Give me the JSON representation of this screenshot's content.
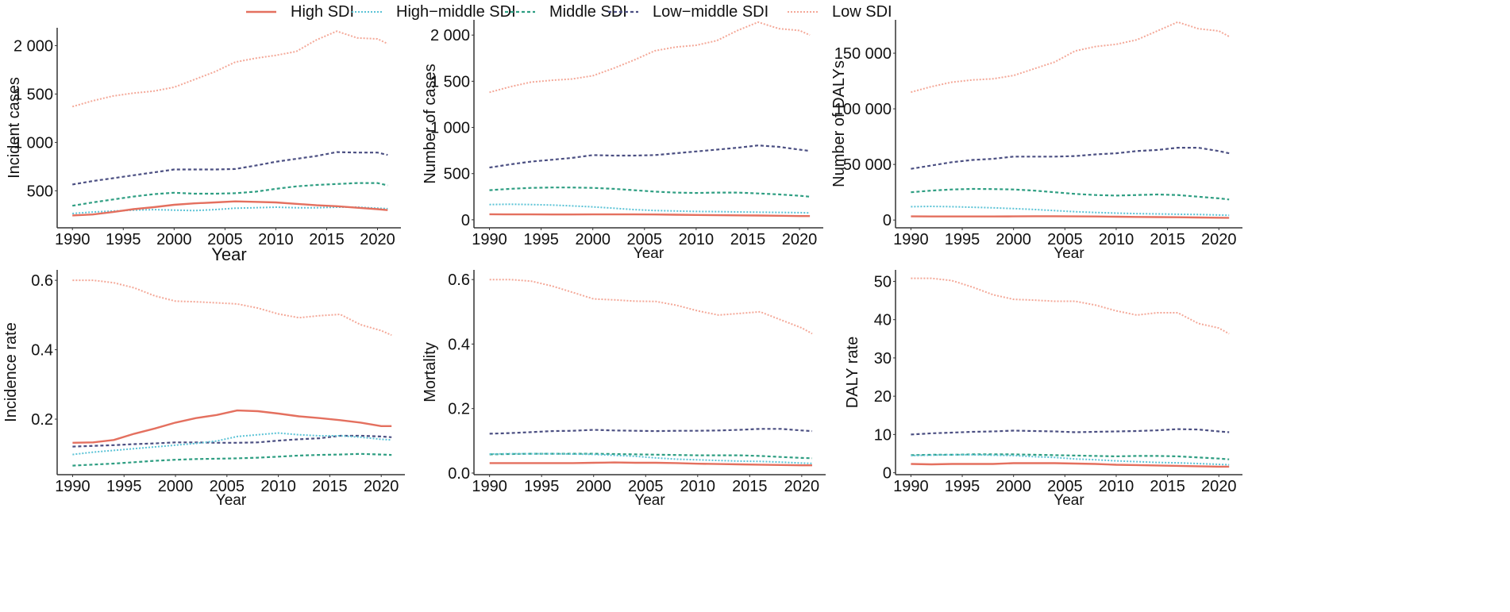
{
  "legend": [
    {
      "label": "High SDI",
      "color": "#E4705F",
      "style": "solid"
    },
    {
      "label": "High−middle SDI",
      "color": "#5BC3D6",
      "style": "dotted"
    },
    {
      "label": "Middle SDI",
      "color": "#2E9E82",
      "style": "dashed"
    },
    {
      "label": "Low−middle SDI",
      "color": "#4B4F82",
      "style": "dashed"
    },
    {
      "label": "Low SDI",
      "color": "#F4A898",
      "style": "dotted"
    }
  ],
  "chart_data": [
    {
      "type": "line",
      "xlabel": "Year",
      "ylabel": "Incident cases",
      "xlim": [
        1988.5,
        2022.3
      ],
      "ylim": [
        117,
        2185
      ],
      "xticks": [
        1990,
        1995,
        2000,
        2005,
        2010,
        2015,
        2020
      ],
      "xtick_labels": [
        "1990",
        "1995",
        "2000",
        "2005",
        "2010",
        "2015",
        "2020"
      ],
      "yticks": [
        500,
        1000,
        1500,
        2000
      ],
      "ytick_labels": [
        "500",
        "1 000",
        "1 500",
        "2 000"
      ],
      "x": [
        1990,
        1992,
        1994,
        1996,
        1998,
        2000,
        2002,
        2004,
        2006,
        2008,
        2010,
        2012,
        2014,
        2016,
        2018,
        2020,
        2021
      ],
      "series": [
        {
          "name": "High SDI",
          "values": [
            245,
            255,
            280,
            310,
            330,
            355,
            370,
            380,
            390,
            385,
            380,
            365,
            350,
            340,
            325,
            310,
            300
          ]
        },
        {
          "name": "High-middle SDI",
          "values": [
            265,
            280,
            290,
            300,
            305,
            300,
            295,
            305,
            320,
            325,
            330,
            325,
            325,
            330,
            330,
            320,
            315
          ]
        },
        {
          "name": "Middle SDI",
          "values": [
            345,
            380,
            410,
            440,
            465,
            480,
            470,
            470,
            475,
            490,
            520,
            545,
            560,
            570,
            580,
            580,
            555
          ]
        },
        {
          "name": "Low-middle SDI",
          "values": [
            565,
            600,
            630,
            660,
            690,
            720,
            720,
            720,
            725,
            760,
            800,
            830,
            860,
            900,
            895,
            895,
            870
          ]
        },
        {
          "name": "Low SDI",
          "values": [
            1370,
            1430,
            1480,
            1510,
            1530,
            1570,
            1650,
            1730,
            1830,
            1870,
            1900,
            1940,
            2060,
            2150,
            2080,
            2070,
            2020
          ]
        }
      ]
    },
    {
      "type": "line",
      "xlabel": "Year",
      "ylabel": "Number of cases",
      "xlim": [
        1988.5,
        2022.3
      ],
      "ylim": [
        -87,
        2165
      ],
      "xticks": [
        1990,
        1995,
        2000,
        2005,
        2010,
        2015,
        2020
      ],
      "xtick_labels": [
        "1990",
        "1995",
        "2000",
        "2005",
        "2010",
        "2015",
        "2020"
      ],
      "yticks": [
        0,
        500,
        1000,
        1500,
        2000
      ],
      "ytick_labels": [
        "0",
        "500",
        "1 000",
        "1 500",
        "2 000"
      ],
      "x": [
        1990,
        1992,
        1994,
        1996,
        1998,
        2000,
        2002,
        2004,
        2006,
        2008,
        2010,
        2012,
        2014,
        2016,
        2018,
        2020,
        2021
      ],
      "series": [
        {
          "name": "High SDI",
          "values": [
            60,
            58,
            58,
            57,
            57,
            58,
            58,
            58,
            57,
            55,
            52,
            50,
            48,
            46,
            44,
            40,
            40
          ]
        },
        {
          "name": "High-middle SDI",
          "values": [
            165,
            168,
            165,
            160,
            150,
            140,
            125,
            110,
            100,
            95,
            90,
            88,
            85,
            82,
            80,
            77,
            75
          ]
        },
        {
          "name": "Middle SDI",
          "values": [
            320,
            335,
            345,
            350,
            350,
            345,
            335,
            320,
            305,
            295,
            290,
            295,
            295,
            285,
            275,
            260,
            250
          ]
        },
        {
          "name": "Low-middle SDI",
          "values": [
            565,
            600,
            630,
            650,
            670,
            700,
            695,
            695,
            700,
            720,
            740,
            760,
            780,
            805,
            790,
            760,
            745
          ]
        },
        {
          "name": "Low SDI",
          "values": [
            1380,
            1440,
            1490,
            1510,
            1525,
            1560,
            1640,
            1730,
            1830,
            1870,
            1890,
            1940,
            2050,
            2140,
            2070,
            2050,
            2000
          ]
        }
      ]
    },
    {
      "type": "line",
      "xlabel": "Year",
      "ylabel": "Number of DALYs",
      "xlim": [
        1988.5,
        2022.3
      ],
      "ylim": [
        -7000,
        180000
      ],
      "xticks": [
        1990,
        1995,
        2000,
        2005,
        2010,
        2015,
        2020
      ],
      "xtick_labels": [
        "1990",
        "1995",
        "2000",
        "2005",
        "2010",
        "2015",
        "2020"
      ],
      "yticks": [
        0,
        50000,
        100000,
        150000
      ],
      "ytick_labels": [
        "0",
        "50 000",
        "100 000",
        "150 000"
      ],
      "x": [
        1990,
        1992,
        1994,
        1996,
        1998,
        2000,
        2002,
        2004,
        2006,
        2008,
        2010,
        2012,
        2014,
        2016,
        2018,
        2020,
        2021
      ],
      "series": [
        {
          "name": "High SDI",
          "values": [
            3300,
            3200,
            3200,
            3200,
            3200,
            3300,
            3400,
            3400,
            3300,
            3200,
            3000,
            2800,
            2600,
            2500,
            2300,
            2100,
            2000
          ]
        },
        {
          "name": "High-middle SDI",
          "values": [
            12000,
            12300,
            12000,
            11500,
            11000,
            10300,
            9500,
            8500,
            7500,
            6800,
            6200,
            5800,
            5500,
            5200,
            5000,
            4500,
            4300
          ]
        },
        {
          "name": "Middle SDI",
          "values": [
            25000,
            26500,
            27500,
            28000,
            27800,
            27500,
            26500,
            25000,
            23500,
            22500,
            22000,
            22500,
            23000,
            22500,
            21000,
            19500,
            18500
          ]
        },
        {
          "name": "Low-middle SDI",
          "values": [
            46000,
            49000,
            52000,
            54000,
            55000,
            57000,
            57000,
            57000,
            57500,
            59000,
            60000,
            62000,
            63000,
            65000,
            65000,
            62000,
            60000
          ]
        },
        {
          "name": "Low SDI",
          "values": [
            115000,
            120000,
            124000,
            126000,
            127000,
            130000,
            136000,
            142000,
            152000,
            156000,
            158000,
            162000,
            170000,
            178000,
            172000,
            170000,
            165000
          ]
        }
      ]
    },
    {
      "type": "line",
      "xlabel": "Year",
      "ylabel": "Incidence rate",
      "xlim": [
        1988.5,
        2022.3
      ],
      "ylim": [
        0.04,
        0.63
      ],
      "xticks": [
        1990,
        1995,
        2000,
        2005,
        2010,
        2015,
        2020
      ],
      "xtick_labels": [
        "1990",
        "1995",
        "2000",
        "2005",
        "2010",
        "2015",
        "2020"
      ],
      "yticks": [
        0.2,
        0.4,
        0.6
      ],
      "ytick_labels": [
        "0.2",
        "0.4",
        "0.6"
      ],
      "x": [
        1990,
        1992,
        1994,
        1996,
        1998,
        2000,
        2002,
        2004,
        2006,
        2008,
        2010,
        2012,
        2014,
        2016,
        2018,
        2020,
        2021
      ],
      "series": [
        {
          "name": "High SDI",
          "values": [
            0.132,
            0.133,
            0.14,
            0.158,
            0.173,
            0.19,
            0.203,
            0.212,
            0.225,
            0.223,
            0.216,
            0.208,
            0.203,
            0.197,
            0.19,
            0.18,
            0.18
          ]
        },
        {
          "name": "High-middle SDI",
          "values": [
            0.098,
            0.105,
            0.11,
            0.115,
            0.12,
            0.125,
            0.13,
            0.137,
            0.15,
            0.155,
            0.16,
            0.155,
            0.152,
            0.152,
            0.148,
            0.142,
            0.14
          ]
        },
        {
          "name": "Middle SDI",
          "values": [
            0.066,
            0.069,
            0.072,
            0.076,
            0.08,
            0.083,
            0.085,
            0.086,
            0.087,
            0.089,
            0.092,
            0.095,
            0.097,
            0.098,
            0.1,
            0.098,
            0.097
          ]
        },
        {
          "name": "Low-middle SDI",
          "values": [
            0.121,
            0.123,
            0.125,
            0.128,
            0.13,
            0.133,
            0.133,
            0.132,
            0.132,
            0.133,
            0.138,
            0.142,
            0.145,
            0.152,
            0.152,
            0.15,
            0.148
          ]
        },
        {
          "name": "Low SDI",
          "values": [
            0.6,
            0.6,
            0.593,
            0.578,
            0.555,
            0.54,
            0.538,
            0.535,
            0.532,
            0.52,
            0.503,
            0.492,
            0.498,
            0.502,
            0.472,
            0.455,
            0.442
          ]
        }
      ]
    },
    {
      "type": "line",
      "xlabel": "Year",
      "ylabel": "Mortality",
      "xlim": [
        1988.5,
        2022.3
      ],
      "ylim": [
        -0.005,
        0.63
      ],
      "xticks": [
        1990,
        1995,
        2000,
        2005,
        2010,
        2015,
        2020
      ],
      "xtick_labels": [
        "1990",
        "1995",
        "2000",
        "2005",
        "2010",
        "2015",
        "2020"
      ],
      "yticks": [
        0,
        0.2,
        0.4,
        0.6
      ],
      "ytick_labels": [
        "0.0",
        "0.2",
        "0.4",
        "0.6"
      ],
      "x": [
        1990,
        1992,
        1994,
        1996,
        1998,
        2000,
        2002,
        2004,
        2006,
        2008,
        2010,
        2012,
        2014,
        2016,
        2018,
        2020,
        2021
      ],
      "series": [
        {
          "name": "High SDI",
          "values": [
            0.031,
            0.031,
            0.031,
            0.031,
            0.031,
            0.032,
            0.033,
            0.032,
            0.032,
            0.031,
            0.029,
            0.028,
            0.027,
            0.026,
            0.025,
            0.024,
            0.024
          ]
        },
        {
          "name": "High-middle SDI",
          "values": [
            0.059,
            0.06,
            0.06,
            0.06,
            0.059,
            0.058,
            0.055,
            0.052,
            0.047,
            0.043,
            0.041,
            0.039,
            0.037,
            0.036,
            0.034,
            0.031,
            0.03
          ]
        },
        {
          "name": "Middle SDI",
          "values": [
            0.058,
            0.059,
            0.06,
            0.06,
            0.06,
            0.06,
            0.059,
            0.058,
            0.057,
            0.056,
            0.055,
            0.055,
            0.055,
            0.053,
            0.05,
            0.047,
            0.046
          ]
        },
        {
          "name": "Low-middle SDI",
          "values": [
            0.122,
            0.124,
            0.127,
            0.13,
            0.131,
            0.134,
            0.132,
            0.131,
            0.13,
            0.131,
            0.131,
            0.132,
            0.134,
            0.137,
            0.137,
            0.132,
            0.13
          ]
        },
        {
          "name": "Low SDI",
          "values": [
            0.6,
            0.6,
            0.595,
            0.58,
            0.56,
            0.54,
            0.537,
            0.533,
            0.532,
            0.52,
            0.503,
            0.49,
            0.495,
            0.5,
            0.475,
            0.45,
            0.432
          ]
        }
      ]
    },
    {
      "type": "line",
      "xlabel": "Year",
      "ylabel": "DALY rate",
      "xlim": [
        1988.5,
        2022.3
      ],
      "ylim": [
        -0.5,
        53
      ],
      "xticks": [
        1990,
        1995,
        2000,
        2005,
        2010,
        2015,
        2020
      ],
      "xtick_labels": [
        "1990",
        "1995",
        "2000",
        "2005",
        "2010",
        "2015",
        "2020"
      ],
      "yticks": [
        0,
        10,
        20,
        30,
        40,
        50
      ],
      "ytick_labels": [
        "0",
        "10",
        "20",
        "30",
        "40",
        "50"
      ],
      "x": [
        1990,
        1992,
        1994,
        1996,
        1998,
        2000,
        2002,
        2004,
        2006,
        2008,
        2010,
        2012,
        2014,
        2016,
        2018,
        2020,
        2021
      ],
      "series": [
        {
          "name": "High SDI",
          "values": [
            2.3,
            2.2,
            2.3,
            2.3,
            2.3,
            2.5,
            2.5,
            2.5,
            2.4,
            2.3,
            2.1,
            2.0,
            1.9,
            1.8,
            1.7,
            1.6,
            1.6
          ]
        },
        {
          "name": "High-middle SDI",
          "values": [
            4.5,
            4.6,
            4.7,
            4.7,
            4.6,
            4.5,
            4.2,
            4.0,
            3.6,
            3.4,
            3.1,
            2.9,
            2.7,
            2.6,
            2.4,
            2.2,
            2.1
          ]
        },
        {
          "name": "Middle SDI",
          "values": [
            4.6,
            4.7,
            4.7,
            4.8,
            4.8,
            4.8,
            4.7,
            4.6,
            4.5,
            4.4,
            4.3,
            4.4,
            4.4,
            4.3,
            4.0,
            3.7,
            3.5
          ]
        },
        {
          "name": "Low-middle SDI",
          "values": [
            10.0,
            10.3,
            10.5,
            10.7,
            10.8,
            11.0,
            10.9,
            10.8,
            10.6,
            10.7,
            10.8,
            10.9,
            11.1,
            11.4,
            11.3,
            10.8,
            10.6
          ]
        },
        {
          "name": "Low SDI",
          "values": [
            50.8,
            50.8,
            50.2,
            48.5,
            46.5,
            45.3,
            45.1,
            44.8,
            44.8,
            43.8,
            42.3,
            41.2,
            41.8,
            41.8,
            39.0,
            37.8,
            36.3
          ]
        }
      ]
    }
  ]
}
